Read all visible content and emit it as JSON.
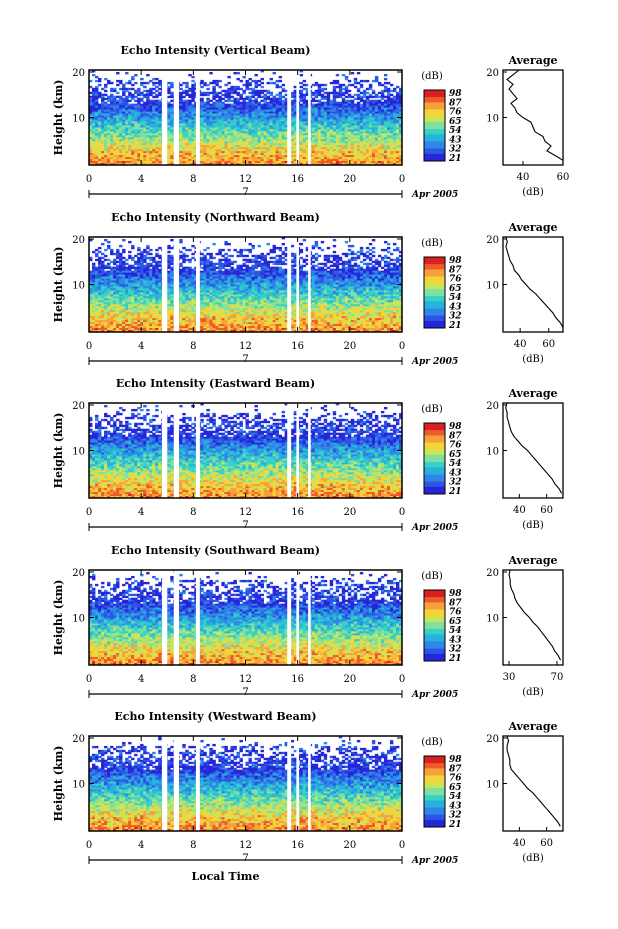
{
  "figure": {
    "x_axis_label": "Local Time",
    "date_label": "Apr 2005",
    "date_day": "7",
    "y_axis_label": "Height (km)",
    "unit_label": "(dB)",
    "avg_title": "Average",
    "avg_xlabel": "(dB)"
  },
  "colors": {
    "scale": [
      "#2626d9",
      "#2e54e6",
      "#2f86e8",
      "#27b2dc",
      "#38d2c5",
      "#7fe0a0",
      "#c8e65a",
      "#f5d43a",
      "#f6a13a",
      "#ee5a2c",
      "#d92020"
    ]
  },
  "chart_data": [
    {
      "type": "heatmap",
      "title": "Echo Intensity (Vertical Beam)",
      "x_ticks": [
        "0",
        "4",
        "8",
        "12",
        "16",
        "20",
        "0"
      ],
      "x_range": [
        0,
        24
      ],
      "y_ticks": [
        "10",
        "20"
      ],
      "y_range": [
        0,
        20
      ],
      "colorbar_ticks": [
        "98",
        "87",
        "76",
        "65",
        "54",
        "43",
        "32",
        "21"
      ],
      "colorbar_range": [
        21,
        98
      ],
      "data_gaps_hours": [
        [
          5.6,
          6.0
        ],
        [
          6.5,
          6.9
        ],
        [
          8.2,
          8.5
        ],
        [
          15.2,
          15.5
        ],
        [
          15.9,
          16.1
        ],
        [
          16.8,
          17.0
        ]
      ],
      "profile": {
        "x_ticks": [
          "40",
          "60"
        ],
        "x_range": [
          30,
          60
        ],
        "height_km": [
          1,
          2,
          3,
          4,
          5,
          6,
          7,
          8,
          9,
          10,
          11,
          12,
          13,
          14,
          15,
          16,
          17,
          18,
          19,
          20
        ],
        "mean_db": [
          60,
          56,
          52,
          54,
          51,
          50,
          46,
          45,
          44,
          40,
          37,
          36,
          34,
          37,
          35,
          33,
          35,
          32,
          35,
          38
        ]
      }
    },
    {
      "type": "heatmap",
      "title": "Echo Intensity (Northward Beam)",
      "x_ticks": [
        "0",
        "4",
        "8",
        "12",
        "16",
        "20",
        "0"
      ],
      "x_range": [
        0,
        24
      ],
      "y_ticks": [
        "10",
        "20"
      ],
      "y_range": [
        0,
        20
      ],
      "colorbar_ticks": [
        "98",
        "87",
        "76",
        "65",
        "54",
        "43",
        "32",
        "21"
      ],
      "colorbar_range": [
        21,
        98
      ],
      "data_gaps_hours": [
        [
          5.6,
          6.0
        ],
        [
          6.5,
          6.9
        ],
        [
          8.2,
          8.5
        ],
        [
          15.2,
          15.5
        ],
        [
          15.9,
          16.1
        ],
        [
          16.8,
          17.0
        ]
      ],
      "profile": {
        "x_ticks": [
          "40",
          "60"
        ],
        "x_range": [
          28,
          70
        ],
        "height_km": [
          1,
          2,
          3,
          4,
          5,
          6,
          7,
          8,
          9,
          10,
          11,
          12,
          13,
          14,
          15,
          16,
          17,
          18,
          19,
          20
        ],
        "mean_db": [
          70,
          68,
          65,
          63,
          60,
          57,
          54,
          51,
          47,
          44,
          41,
          39,
          36,
          35,
          33,
          32,
          31,
          30,
          31,
          30
        ]
      }
    },
    {
      "type": "heatmap",
      "title": "Echo Intensity (Eastward Beam)",
      "x_ticks": [
        "0",
        "4",
        "8",
        "12",
        "16",
        "20",
        "0"
      ],
      "x_range": [
        0,
        24
      ],
      "y_ticks": [
        "10",
        "20"
      ],
      "y_range": [
        0,
        20
      ],
      "colorbar_ticks": [
        "98",
        "87",
        "76",
        "65",
        "54",
        "43",
        "32",
        "21"
      ],
      "colorbar_range": [
        21,
        98
      ],
      "data_gaps_hours": [
        [
          5.6,
          6.0
        ],
        [
          6.5,
          6.9
        ],
        [
          8.2,
          8.5
        ],
        [
          15.2,
          15.5
        ],
        [
          15.9,
          16.1
        ],
        [
          16.8,
          17.0
        ]
      ],
      "profile": {
        "x_ticks": [
          "40",
          "60"
        ],
        "x_range": [
          28,
          72
        ],
        "height_km": [
          1,
          2,
          3,
          4,
          5,
          6,
          7,
          8,
          9,
          10,
          11,
          12,
          13,
          14,
          15,
          16,
          17,
          18,
          19,
          20
        ],
        "mean_db": [
          71,
          69,
          66,
          64,
          61,
          58,
          55,
          52,
          49,
          46,
          42,
          39,
          36,
          34,
          33,
          32,
          31,
          31,
          30,
          31
        ]
      }
    },
    {
      "type": "heatmap",
      "title": "Echo Intensity (Southward Beam)",
      "x_ticks": [
        "0",
        "4",
        "8",
        "12",
        "16",
        "20",
        "0"
      ],
      "x_range": [
        0,
        24
      ],
      "y_ticks": [
        "10",
        "20"
      ],
      "y_range": [
        0,
        20
      ],
      "colorbar_ticks": [
        "98",
        "87",
        "76",
        "65",
        "54",
        "43",
        "32",
        "21"
      ],
      "colorbar_range": [
        21,
        98
      ],
      "data_gaps_hours": [
        [
          5.6,
          6.0
        ],
        [
          6.5,
          6.9
        ],
        [
          8.2,
          8.5
        ],
        [
          15.2,
          15.5
        ],
        [
          15.9,
          16.1
        ],
        [
          16.8,
          17.0
        ]
      ],
      "profile": {
        "x_ticks": [
          "30",
          "70"
        ],
        "x_range": [
          25,
          75
        ],
        "height_km": [
          1,
          2,
          3,
          4,
          5,
          6,
          7,
          8,
          9,
          10,
          11,
          12,
          13,
          14,
          15,
          16,
          17,
          18,
          19,
          20
        ],
        "mean_db": [
          73,
          71,
          68,
          66,
          63,
          60,
          57,
          54,
          50,
          47,
          43,
          40,
          37,
          35,
          34,
          32,
          31,
          31,
          30,
          31
        ]
      }
    },
    {
      "type": "heatmap",
      "title": "Echo Intensity (Westward Beam)",
      "x_ticks": [
        "0",
        "4",
        "8",
        "12",
        "16",
        "20",
        "0"
      ],
      "x_range": [
        0,
        24
      ],
      "y_ticks": [
        "10",
        "20"
      ],
      "y_range": [
        0,
        20
      ],
      "colorbar_ticks": [
        "98",
        "87",
        "76",
        "65",
        "54",
        "43",
        "32",
        "21"
      ],
      "colorbar_range": [
        21,
        98
      ],
      "data_gaps_hours": [
        [
          5.6,
          6.0
        ],
        [
          6.5,
          6.9
        ],
        [
          8.2,
          8.5
        ],
        [
          15.2,
          15.5
        ],
        [
          15.9,
          16.1
        ],
        [
          16.8,
          17.0
        ]
      ],
      "profile": {
        "x_ticks": [
          "40",
          "60"
        ],
        "x_range": [
          28,
          72
        ],
        "height_km": [
          1,
          2,
          3,
          4,
          5,
          6,
          7,
          8,
          9,
          10,
          11,
          12,
          13,
          14,
          15,
          16,
          17,
          18,
          19,
          20
        ],
        "mean_db": [
          70,
          68,
          65,
          62,
          59,
          56,
          53,
          50,
          46,
          43,
          40,
          37,
          34,
          33,
          33,
          32,
          31,
          31,
          32,
          31
        ]
      }
    }
  ]
}
